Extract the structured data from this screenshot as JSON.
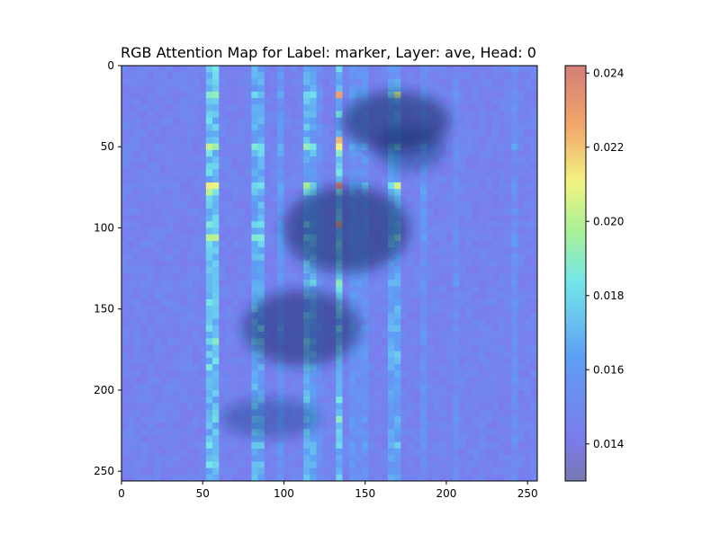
{
  "chart_data": {
    "type": "heatmap",
    "title": "RGB Attention Map for Label: marker, Layer: ave, Head: 0",
    "grid_size": 64,
    "extent": [
      0,
      256
    ],
    "x_ticks": [
      0,
      50,
      100,
      150,
      200,
      250
    ],
    "y_ticks": [
      0,
      50,
      100,
      150,
      200,
      250
    ],
    "colorbar": {
      "min": 0.013,
      "max": 0.0242,
      "ticks": [
        "0.014",
        "0.016",
        "0.018",
        "0.020",
        "0.022",
        "0.024"
      ],
      "tick_values": [
        0.014,
        0.016,
        0.018,
        0.02,
        0.022,
        0.024
      ]
    },
    "column_profile": {
      "base": 0.0146,
      "peaks": [
        {
          "col": 13,
          "delta": 0.003
        },
        {
          "col": 14,
          "delta": 0.003
        },
        {
          "col": 20,
          "delta": 0.0022
        },
        {
          "col": 21,
          "delta": 0.0022
        },
        {
          "col": 24,
          "delta": 0.0012
        },
        {
          "col": 28,
          "delta": 0.0025
        },
        {
          "col": 29,
          "delta": 0.002
        },
        {
          "col": 30,
          "delta": 0.0008
        },
        {
          "col": 33,
          "delta": 0.003
        },
        {
          "col": 35,
          "delta": 0.0012
        },
        {
          "col": 36,
          "delta": 0.0008
        },
        {
          "col": 37,
          "delta": 0.0012
        },
        {
          "col": 41,
          "delta": 0.0018
        },
        {
          "col": 42,
          "delta": 0.002
        },
        {
          "col": 46,
          "delta": 0.001
        },
        {
          "col": 51,
          "delta": 0.0006
        },
        {
          "col": 60,
          "delta": 0.0008
        }
      ]
    },
    "row_profile": {
      "peaks": [
        {
          "row": 4,
          "factor": 1.5
        },
        {
          "row": 7,
          "factor": 1.2
        },
        {
          "row": 12,
          "factor": 1.8
        },
        {
          "row": 13,
          "factor": 1.2
        },
        {
          "row": 18,
          "factor": 1.9
        },
        {
          "row": 19,
          "factor": 1.5
        },
        {
          "row": 24,
          "factor": 1.4
        },
        {
          "row": 26,
          "factor": 1.6
        },
        {
          "row": 27,
          "factor": 1.3
        },
        {
          "row": 33,
          "factor": 1.4
        },
        {
          "row": 37,
          "factor": 1.3
        },
        {
          "row": 40,
          "factor": 1.4
        },
        {
          "row": 42,
          "factor": 1.3
        },
        {
          "row": 44,
          "factor": 1.2
        },
        {
          "row": 54,
          "factor": 1.2
        },
        {
          "row": 58,
          "factor": 1.3
        }
      ]
    },
    "hotspots": [
      {
        "row": 4,
        "col": 33,
        "value": 0.0228
      },
      {
        "row": 11,
        "col": 33,
        "value": 0.0222
      },
      {
        "row": 18,
        "col": 33,
        "value": 0.024
      },
      {
        "row": 24,
        "col": 33,
        "value": 0.0226
      },
      {
        "row": 4,
        "col": 42,
        "value": 0.0205
      },
      {
        "row": 18,
        "col": 42,
        "value": 0.0205
      },
      {
        "row": 12,
        "col": 13,
        "value": 0.0202
      },
      {
        "row": 19,
        "col": 13,
        "value": 0.02
      },
      {
        "row": 54,
        "col": 33,
        "value": 0.019
      }
    ]
  }
}
